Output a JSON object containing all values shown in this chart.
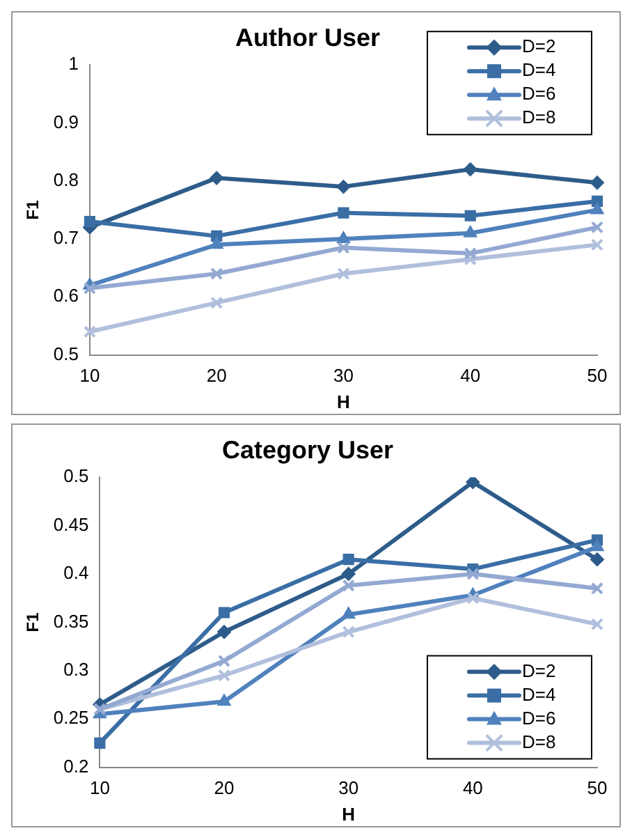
{
  "chart_data": [
    {
      "type": "line",
      "title": "Author User",
      "xlabel": "H",
      "ylabel": "F1",
      "categories": [
        "10",
        "20",
        "30",
        "40",
        "50"
      ],
      "ylim": [
        0.5,
        1
      ],
      "yticks": [
        0.5,
        0.6,
        0.7,
        0.8,
        0.9,
        1
      ],
      "grid": false,
      "legend": "top right",
      "series": [
        {
          "name": "D=2",
          "color": "#2e5c8a",
          "marker": "diamond",
          "values": [
            0.72,
            0.805,
            0.79,
            0.82,
            0.797
          ]
        },
        {
          "name": "D=4",
          "color": "#3a6ea5",
          "marker": "square",
          "values": [
            0.73,
            0.705,
            0.745,
            0.74,
            0.765
          ]
        },
        {
          "name": "D=6",
          "color": "#4f81bd",
          "marker": "triangle",
          "values": [
            0.62,
            0.69,
            0.7,
            0.71,
            0.75
          ]
        },
        {
          "name": "D=8",
          "color": "#b0bfdc",
          "marker": "cross",
          "values": [
            0.54,
            0.59,
            0.64,
            0.665,
            0.69
          ]
        },
        {
          "color": "#93a9d2",
          "marker": "cross",
          "values": [
            0.615,
            0.64,
            0.685,
            0.675,
            0.72
          ]
        }
      ]
    },
    {
      "type": "line",
      "title": "Category User",
      "xlabel": "H",
      "ylabel": "F1",
      "categories": [
        "10",
        "20",
        "30",
        "40",
        "50"
      ],
      "ylim": [
        0.2,
        0.5
      ],
      "yticks": [
        0.2,
        0.25,
        0.3,
        0.35,
        0.4,
        0.45,
        0.5
      ],
      "grid": false,
      "legend": "bottom right",
      "series": [
        {
          "name": "D=2",
          "color": "#2e5c8a",
          "marker": "diamond",
          "values": [
            0.265,
            0.34,
            0.4,
            0.495,
            0.415
          ]
        },
        {
          "name": "D=4",
          "color": "#3a6ea5",
          "marker": "square",
          "values": [
            0.225,
            0.36,
            0.415,
            0.405,
            0.435
          ]
        },
        {
          "name": "D=6",
          "color": "#4f81bd",
          "marker": "triangle",
          "values": [
            0.255,
            0.268,
            0.358,
            0.378,
            0.428
          ]
        },
        {
          "name": "D=8",
          "color": "#b0bfdc",
          "marker": "cross",
          "values": [
            0.26,
            0.295,
            0.34,
            0.375,
            0.348
          ]
        },
        {
          "color": "#93a9d2",
          "marker": "cross",
          "values": [
            0.26,
            0.31,
            0.388,
            0.4,
            0.385
          ]
        }
      ]
    }
  ]
}
